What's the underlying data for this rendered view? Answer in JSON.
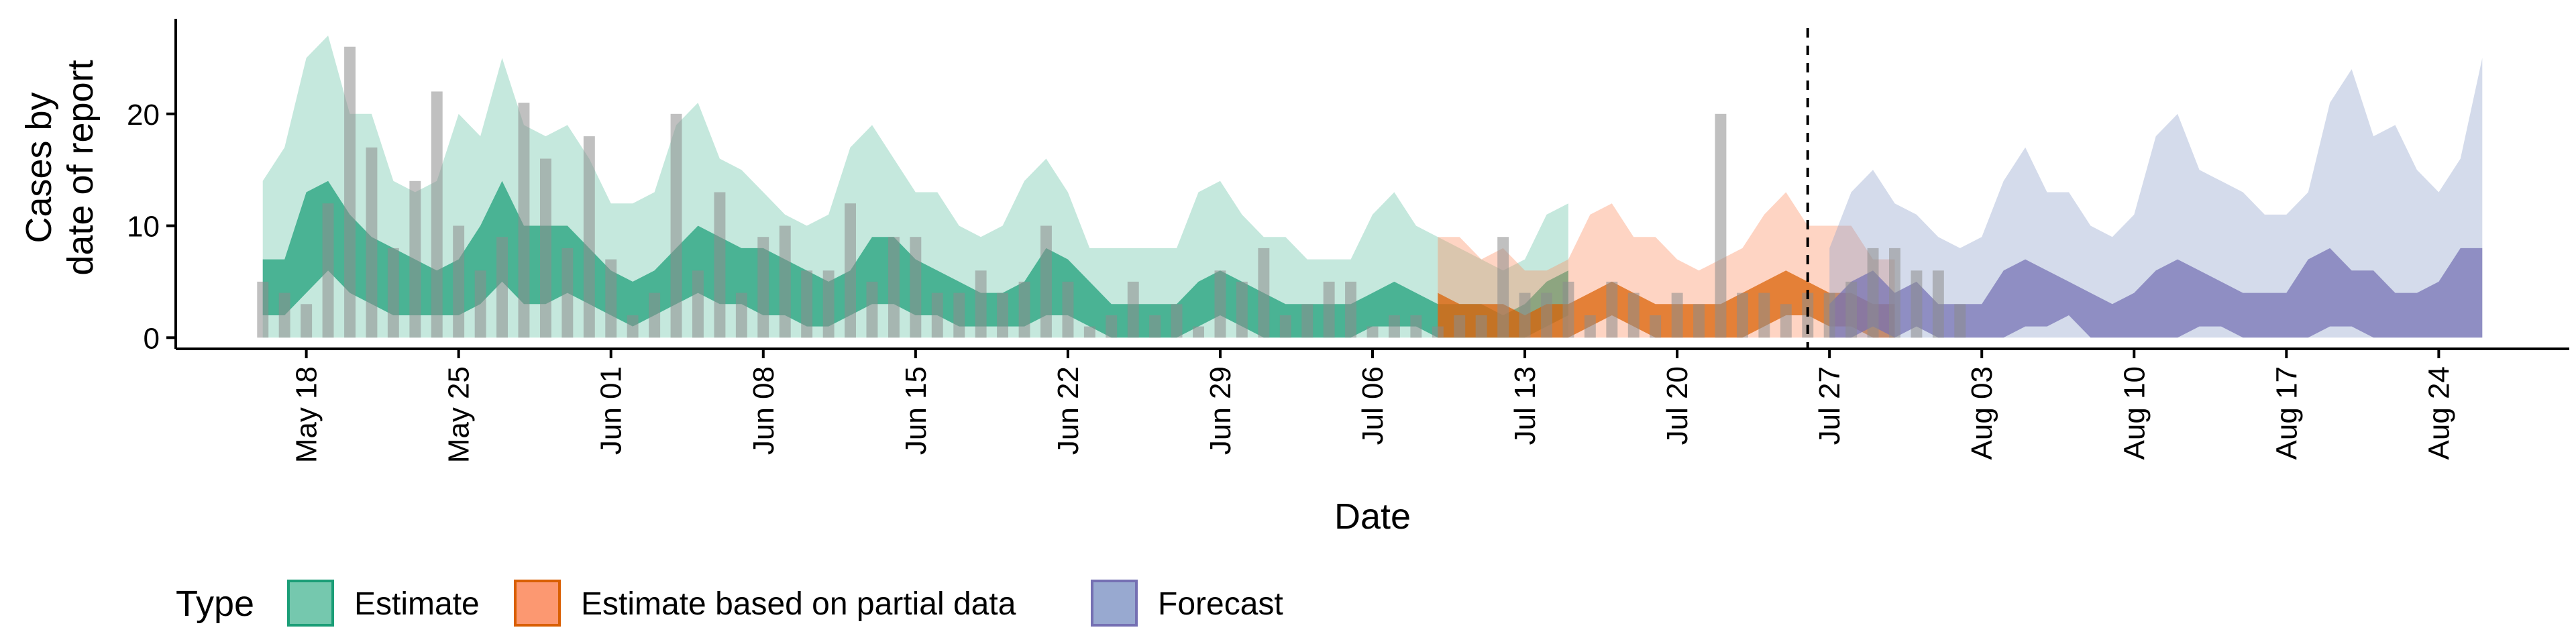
{
  "chart_data": {
    "type": "area",
    "title": "",
    "xlabel": "Date",
    "ylabel_lines": [
      "Cases by",
      "date of report"
    ],
    "xlim": [
      "2020-05-12",
      "2020-08-30"
    ],
    "ylim": [
      -1,
      28.5
    ],
    "x_ticks": [
      {
        "date": "2020-05-18",
        "label": "May 18"
      },
      {
        "date": "2020-05-25",
        "label": "May 25"
      },
      {
        "date": "2020-06-01",
        "label": "Jun 01"
      },
      {
        "date": "2020-06-08",
        "label": "Jun 08"
      },
      {
        "date": "2020-06-15",
        "label": "Jun 15"
      },
      {
        "date": "2020-06-22",
        "label": "Jun 22"
      },
      {
        "date": "2020-06-29",
        "label": "Jun 29"
      },
      {
        "date": "2020-07-06",
        "label": "Jul 06"
      },
      {
        "date": "2020-07-13",
        "label": "Jul 13"
      },
      {
        "date": "2020-07-20",
        "label": "Jul 20"
      },
      {
        "date": "2020-07-27",
        "label": "Jul 27"
      },
      {
        "date": "2020-08-03",
        "label": "Aug 03"
      },
      {
        "date": "2020-08-10",
        "label": "Aug 10"
      },
      {
        "date": "2020-08-17",
        "label": "Aug 17"
      },
      {
        "date": "2020-08-24",
        "label": "Aug 24"
      }
    ],
    "y_ticks": [
      0,
      10,
      20
    ],
    "grid": false,
    "legend_position": "bottom",
    "vline_date": "2020-07-26",
    "observed_cases": {
      "start": "2020-05-16",
      "values": [
        5,
        4,
        3,
        12,
        26,
        17,
        8,
        14,
        22,
        10,
        6,
        9,
        21,
        16,
        8,
        18,
        7,
        2,
        4,
        20,
        6,
        13,
        4,
        9,
        10,
        6,
        6,
        12,
        5,
        9,
        9,
        4,
        4,
        6,
        4,
        5,
        10,
        5,
        1,
        2,
        5,
        2,
        3,
        1,
        6,
        5,
        8,
        2,
        3,
        5,
        5,
        1,
        2,
        2,
        1,
        2,
        2,
        9,
        4,
        4,
        5,
        2,
        5,
        4,
        2,
        4,
        3,
        20,
        4,
        4,
        3,
        4,
        4,
        5,
        8,
        8,
        6,
        6,
        3
      ]
    },
    "series": [
      {
        "name": "Estimate",
        "key": "estimate",
        "color": "#1b9e77",
        "fill": "#66c2a5",
        "start": "2020-05-16",
        "outer_upper": [
          14,
          17,
          25,
          27,
          20,
          20,
          14,
          13,
          14,
          20,
          18,
          25,
          19,
          18,
          19,
          16,
          12,
          12,
          13,
          19,
          21,
          16,
          15,
          13,
          11,
          10,
          11,
          17,
          19,
          16,
          13,
          13,
          10,
          9,
          10,
          14,
          16,
          13,
          8,
          8,
          8,
          8,
          8,
          13,
          14,
          11,
          9,
          9,
          7,
          7,
          7,
          11,
          13,
          10,
          9,
          8,
          7,
          6,
          7,
          11,
          12
        ],
        "outer_lower": [
          0,
          0,
          0,
          0,
          0,
          0,
          0,
          0,
          0,
          0,
          0,
          0,
          0,
          0,
          0,
          0,
          0,
          0,
          0,
          0,
          0,
          0,
          0,
          0,
          0,
          0,
          0,
          0,
          0,
          0,
          0,
          0,
          0,
          0,
          0,
          0,
          0,
          0,
          0,
          0,
          0,
          0,
          0,
          0,
          0,
          0,
          0,
          0,
          0,
          0,
          0,
          0,
          0,
          0,
          0,
          0,
          0,
          0,
          0,
          0,
          0
        ],
        "inner_upper": [
          7,
          7,
          13,
          14,
          11,
          9,
          8,
          7,
          6,
          7,
          10,
          14,
          10,
          10,
          10,
          8,
          6,
          5,
          6,
          8,
          10,
          9,
          8,
          8,
          7,
          6,
          5,
          6,
          9,
          9,
          7,
          6,
          5,
          4,
          4,
          5,
          8,
          7,
          5,
          3,
          3,
          3,
          3,
          5,
          6,
          5,
          4,
          3,
          3,
          3,
          3,
          4,
          5,
          4,
          3,
          3,
          3,
          2,
          3,
          5,
          6
        ],
        "inner_lower": [
          2,
          2,
          4,
          6,
          4,
          3,
          2,
          2,
          2,
          2,
          3,
          5,
          3,
          3,
          4,
          3,
          2,
          1,
          2,
          3,
          4,
          3,
          3,
          2,
          2,
          1,
          1,
          2,
          3,
          3,
          2,
          2,
          1,
          1,
          1,
          1,
          2,
          2,
          1,
          0,
          0,
          0,
          0,
          1,
          2,
          1,
          0,
          0,
          0,
          0,
          0,
          1,
          1,
          1,
          0,
          0,
          0,
          0,
          0,
          1,
          2
        ]
      },
      {
        "name": "Estimate based on partial data",
        "key": "partial",
        "color": "#d95f02",
        "fill": "#fc8d62",
        "start": "2020-07-09",
        "outer_upper": [
          9,
          9,
          7,
          8,
          6,
          6,
          7,
          11,
          12,
          9,
          9,
          7,
          6,
          7,
          8,
          11,
          13,
          10,
          10,
          10,
          7,
          7
        ],
        "outer_lower": [
          0,
          0,
          0,
          0,
          0,
          0,
          0,
          0,
          0,
          0,
          0,
          0,
          0,
          0,
          0,
          0,
          0,
          0,
          0,
          0,
          0,
          0
        ],
        "inner_upper": [
          4,
          3,
          3,
          3,
          2,
          3,
          3,
          4,
          5,
          4,
          3,
          3,
          3,
          3,
          4,
          5,
          6,
          5,
          4,
          4,
          3,
          3
        ],
        "inner_lower": [
          0,
          0,
          0,
          0,
          0,
          0,
          0,
          1,
          2,
          1,
          0,
          0,
          0,
          0,
          0,
          1,
          2,
          2,
          1,
          1,
          0,
          0
        ]
      },
      {
        "name": "Forecast",
        "key": "forecast",
        "color": "#7570b3",
        "fill": "#8da0cb",
        "start": "2020-07-27",
        "outer_upper": [
          8,
          13,
          15,
          12,
          11,
          9,
          8,
          9,
          14,
          17,
          13,
          13,
          10,
          9,
          11,
          18,
          20,
          15,
          14,
          13,
          11,
          11,
          13,
          21,
          24,
          18,
          19,
          15,
          13,
          16,
          25
        ],
        "outer_lower": [
          0,
          0,
          0,
          0,
          0,
          0,
          0,
          0,
          0,
          0,
          0,
          0,
          0,
          0,
          0,
          0,
          0,
          0,
          0,
          0,
          0,
          0,
          0,
          0,
          0,
          0,
          0,
          0,
          0,
          0,
          0
        ],
        "inner_upper": [
          3,
          5,
          6,
          4,
          5,
          3,
          3,
          3,
          6,
          7,
          6,
          5,
          4,
          3,
          4,
          6,
          7,
          6,
          5,
          4,
          4,
          4,
          7,
          8,
          6,
          6,
          4,
          4,
          5,
          8,
          8
        ],
        "inner_lower": [
          0,
          0,
          1,
          0,
          1,
          0,
          0,
          0,
          0,
          1,
          1,
          2,
          0,
          0,
          0,
          0,
          0,
          1,
          1,
          0,
          0,
          0,
          0,
          1,
          1,
          0,
          0,
          0,
          0,
          0,
          0
        ]
      }
    ],
    "legend": {
      "title": "Type",
      "items": [
        "Estimate",
        "Estimate based on partial data",
        "Forecast"
      ]
    }
  }
}
